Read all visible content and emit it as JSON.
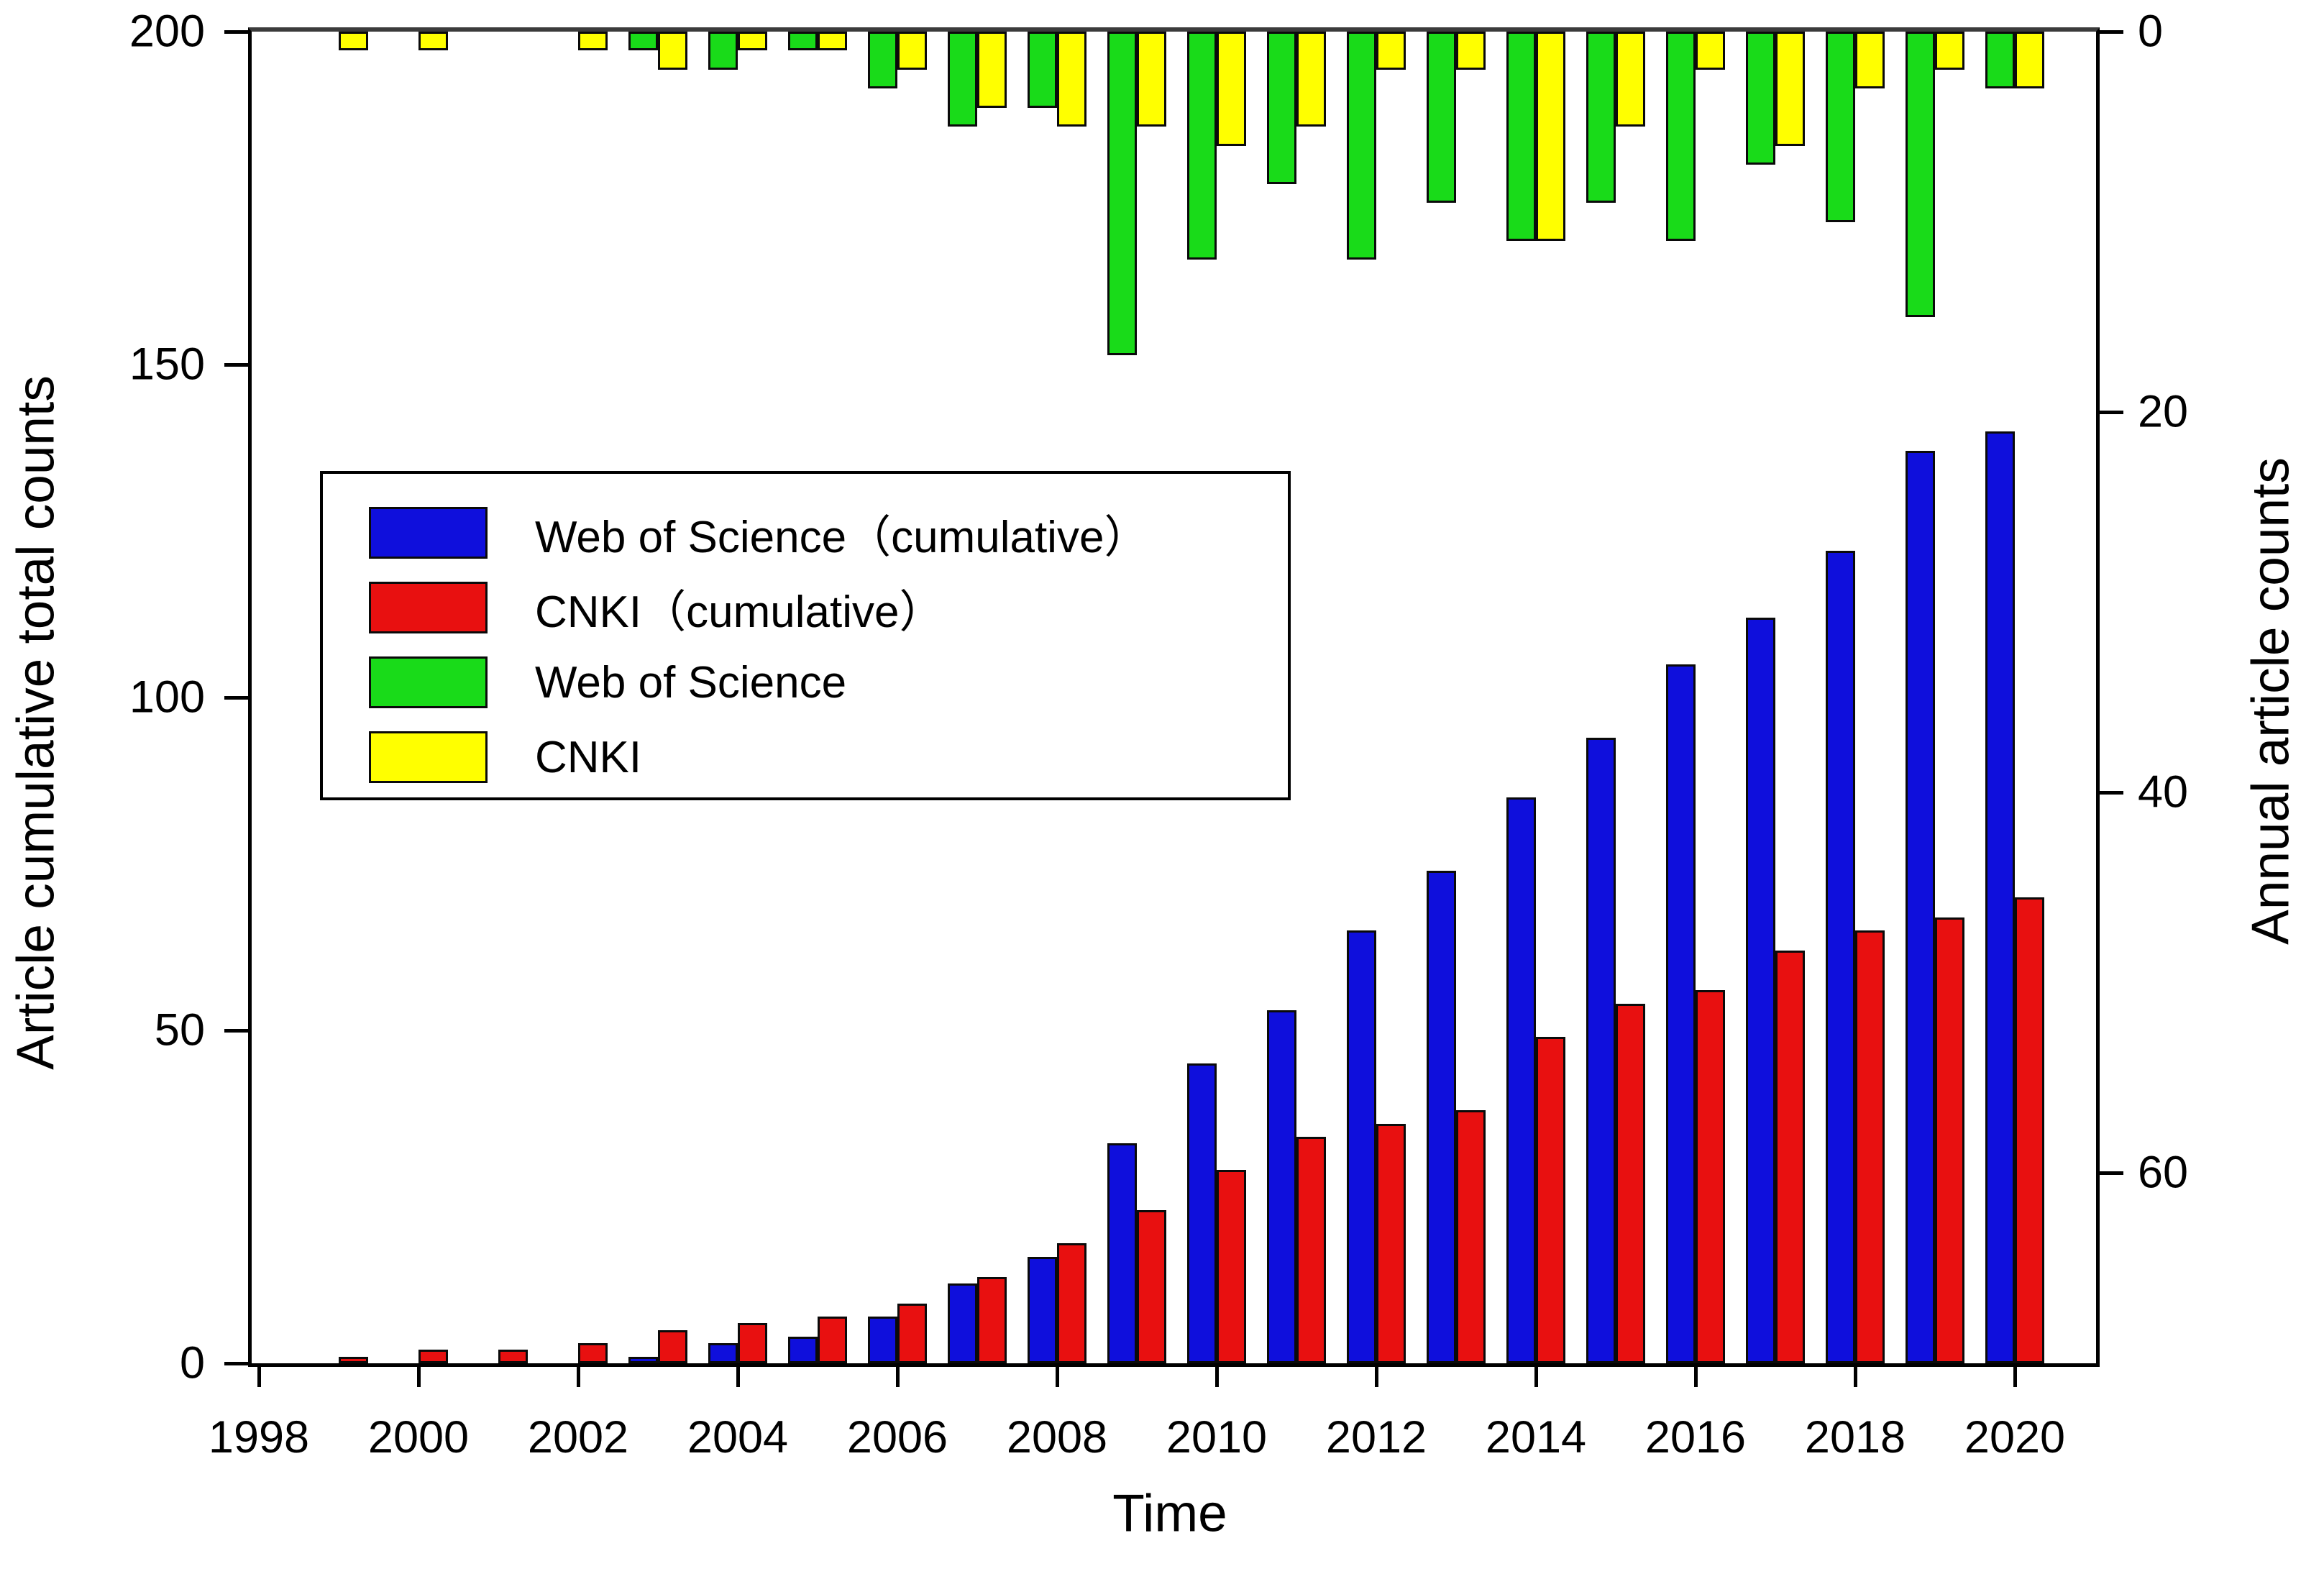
{
  "figure": {
    "xlabel": "Time",
    "left_axis_label": "Article cumulative total counts",
    "right_axis_label": "Annual article counts"
  },
  "legend": {
    "items": [
      {
        "label": "Web of Science（cumulative）",
        "color": "#0F0FDC"
      },
      {
        "label": "CNKI（cumulative）",
        "color": "#E81010"
      },
      {
        "label": "Web of Science",
        "color": "#19DB19"
      },
      {
        "label": "CNKI",
        "color": "#FFFF00"
      }
    ]
  },
  "colors": {
    "wos_cumulative": "#0F0FDC",
    "cnki_cumulative": "#E81010",
    "wos_annual": "#19DB19",
    "cnki_annual": "#FFFF00",
    "axis": "#000000",
    "top_axis": "#3b3b3b",
    "background": "#ffffff"
  },
  "chart_data": {
    "type": "bar",
    "title": "",
    "xlabel": "Time",
    "x": [
      1999,
      2000,
      2001,
      2002,
      2003,
      2004,
      2005,
      2006,
      2007,
      2008,
      2009,
      2010,
      2011,
      2012,
      2013,
      2014,
      2015,
      2016,
      2017,
      2018,
      2019,
      2020
    ],
    "x_tick_labels": [
      1998,
      2000,
      2002,
      2004,
      2006,
      2008,
      2010,
      2012,
      2014,
      2016,
      2018,
      2020
    ],
    "x_range": [
      1997.9,
      2021.0
    ],
    "grid": false,
    "legend_position": "upper-left-inside",
    "left_axis": {
      "label": "Article cumulative total counts",
      "ticks": [
        0,
        50,
        100,
        150,
        200
      ],
      "range": [
        0,
        200
      ],
      "orientation": "bars rise from bottom"
    },
    "right_axis": {
      "label": "Annual article counts",
      "ticks": [
        0,
        20,
        40,
        60
      ],
      "range": [
        0,
        70
      ],
      "inverted": true,
      "orientation": "bars hang from top, 0 at top"
    },
    "series": [
      {
        "name": "Web of Science（cumulative）",
        "axis": "left",
        "color": "#0F0FDC",
        "values": [
          0,
          0,
          0,
          0,
          1,
          3,
          4,
          7,
          12,
          16,
          33,
          45,
          53,
          65,
          74,
          85,
          94,
          105,
          112,
          122,
          137,
          140
        ]
      },
      {
        "name": "CNKI（cumulative）",
        "axis": "left",
        "color": "#E81010",
        "values": [
          1,
          2,
          2,
          3,
          5,
          6,
          7,
          9,
          13,
          18,
          23,
          29,
          34,
          36,
          38,
          49,
          54,
          56,
          62,
          65,
          67,
          70
        ]
      },
      {
        "name": "Web of Science",
        "axis": "right",
        "color": "#19DB19",
        "values": [
          0,
          0,
          0,
          0,
          1,
          2,
          1,
          3,
          5,
          4,
          17,
          12,
          8,
          12,
          9,
          11,
          9,
          11,
          7,
          10,
          15,
          3
        ]
      },
      {
        "name": "CNKI",
        "axis": "right",
        "color": "#FFFF00",
        "values": [
          1,
          1,
          0,
          1,
          2,
          1,
          1,
          2,
          4,
          5,
          5,
          6,
          5,
          2,
          2,
          11,
          5,
          2,
          6,
          3,
          2,
          3
        ]
      }
    ]
  }
}
